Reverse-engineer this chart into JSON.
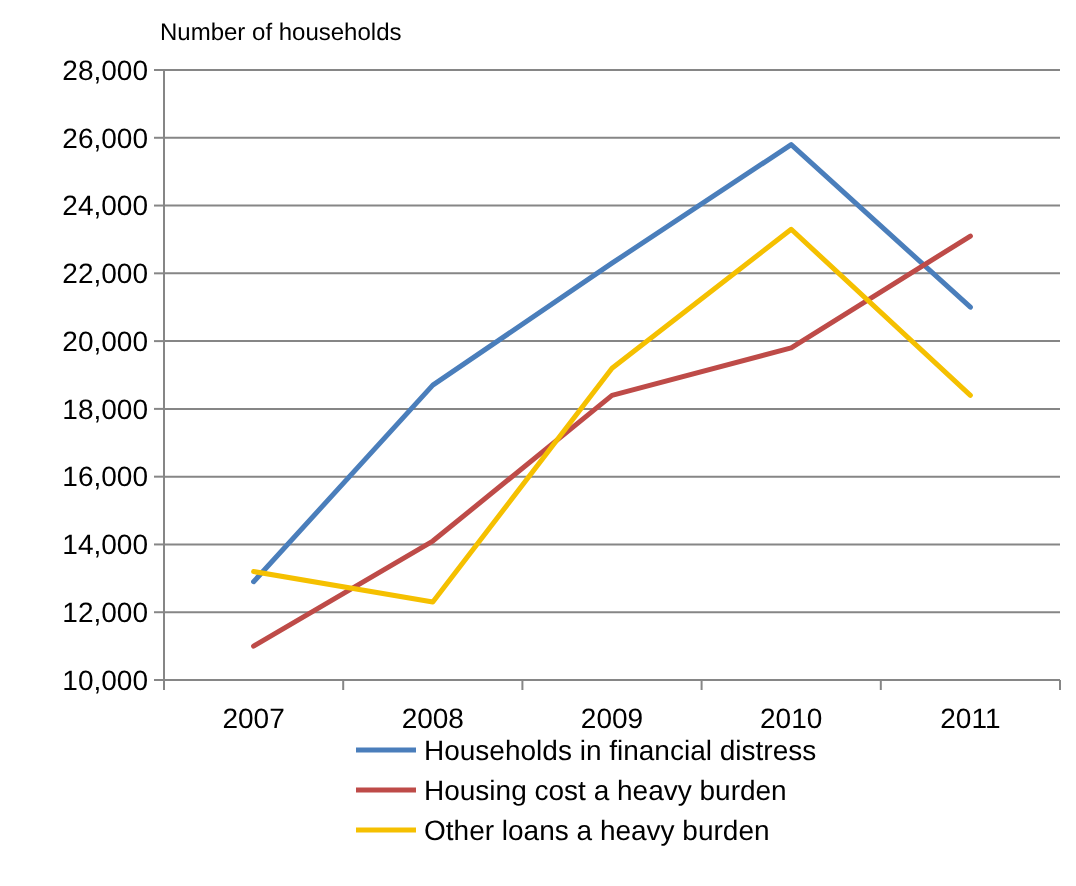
{
  "chart_data": {
    "type": "line",
    "ylabel": "Number of households",
    "categories": [
      "2007",
      "2008",
      "2009",
      "2010",
      "2011"
    ],
    "series": [
      {
        "name": "Households in financial distress",
        "color": "#4a7ebb",
        "values": [
          12900,
          18700,
          22300,
          25800,
          21000
        ]
      },
      {
        "name": "Housing cost a heavy burden",
        "color": "#be4b48",
        "values": [
          11000,
          14100,
          18400,
          19800,
          23100
        ]
      },
      {
        "name": "Other loans a heavy burden",
        "color": "#f5c000",
        "values": [
          13200,
          12300,
          19200,
          23300,
          18400
        ]
      }
    ],
    "ylim": [
      10000,
      28000
    ],
    "yticks": [
      {
        "value": 10000,
        "label": "10,000"
      },
      {
        "value": 12000,
        "label": "12,000"
      },
      {
        "value": 14000,
        "label": "14,000"
      },
      {
        "value": 16000,
        "label": "16,000"
      },
      {
        "value": 18000,
        "label": "18,000"
      },
      {
        "value": 20000,
        "label": "20,000"
      },
      {
        "value": 22000,
        "label": "22,000"
      },
      {
        "value": 24000,
        "label": "24,000"
      },
      {
        "value": 26000,
        "label": "26,000"
      },
      {
        "value": 28000,
        "label": "28,000"
      }
    ],
    "grid": "y",
    "legend": "bottom",
    "marker": "none",
    "line_style": "solid"
  }
}
